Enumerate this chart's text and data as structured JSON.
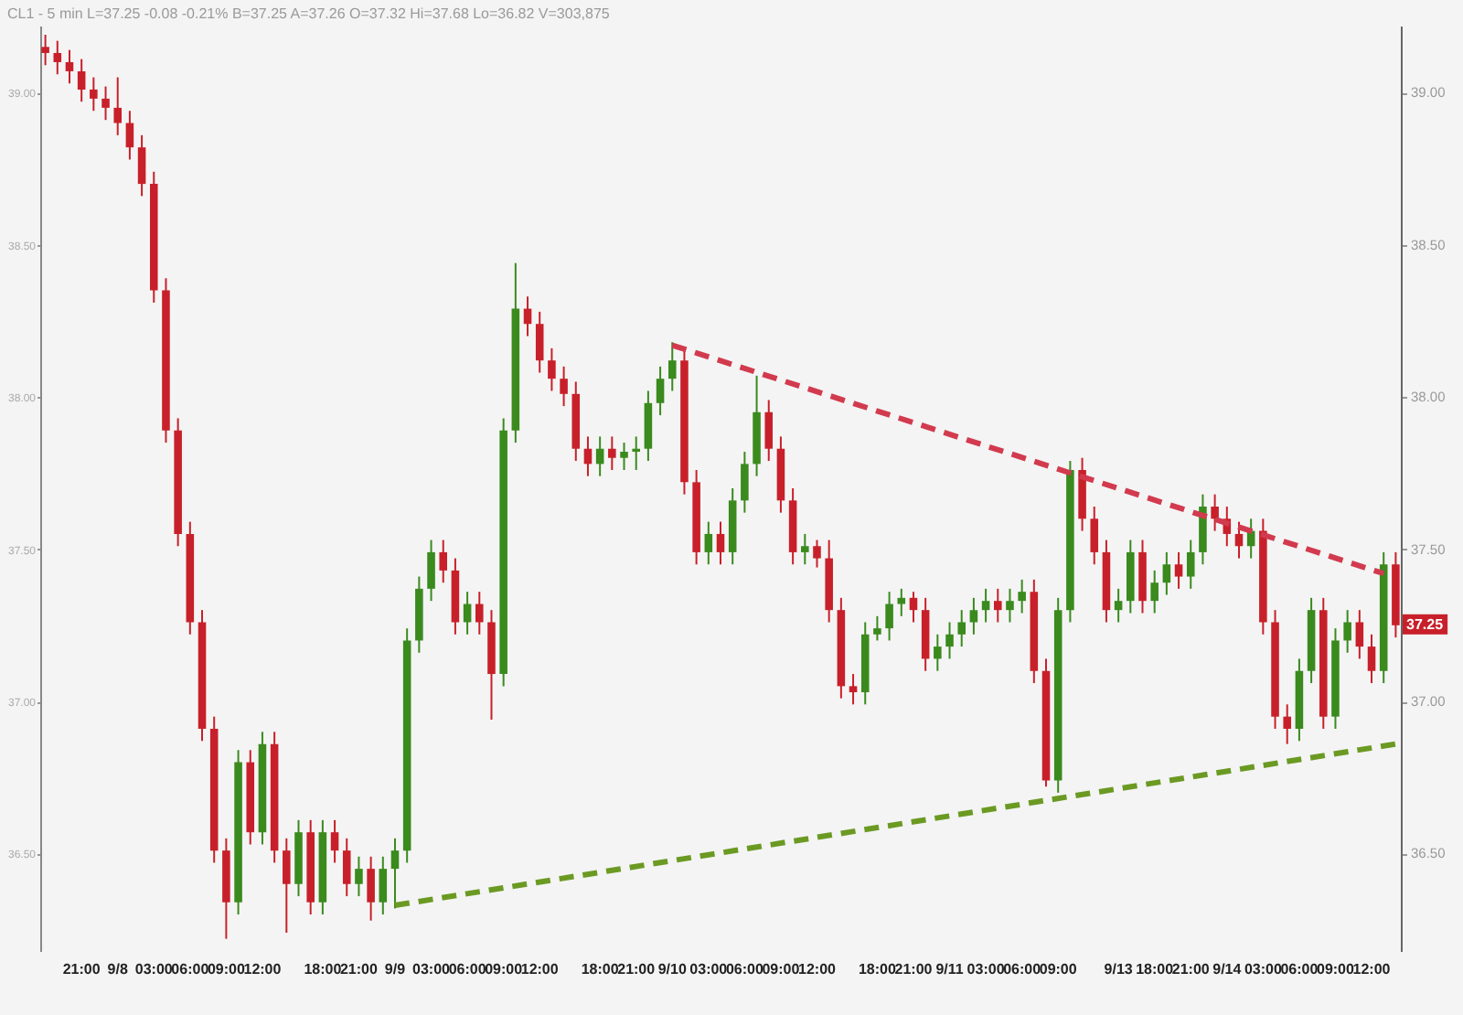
{
  "chart_data": {
    "type": "candlestick",
    "subtitle": "CL1 - 5 min  L=37.25 -0.08 -0.21% B=37.25 A=37.26 O=37.32 Hi=37.68 Lo=36.82 V=303,875",
    "categories": [
      null,
      null,
      null,
      "21:00",
      null,
      null,
      "9/8",
      null,
      null,
      "03:00",
      null,
      null,
      "06:00",
      null,
      null,
      "09:00",
      null,
      null,
      "12:00",
      null,
      null,
      null,
      null,
      "18:00",
      null,
      null,
      "21:00",
      null,
      null,
      "9/9",
      null,
      null,
      "03:00",
      null,
      null,
      "06:00",
      null,
      null,
      "09:00",
      null,
      null,
      "12:00",
      null,
      null,
      null,
      null,
      "18:00",
      null,
      null,
      "21:00",
      null,
      null,
      "9/10",
      null,
      null,
      "03:00",
      null,
      null,
      "06:00",
      null,
      null,
      "09:00",
      null,
      null,
      "12:00",
      null,
      null,
      null,
      null,
      "18:00",
      null,
      null,
      "21:00",
      null,
      null,
      "9/11",
      null,
      null,
      "03:00",
      null,
      null,
      "06:00",
      null,
      null,
      "09:00",
      null,
      null,
      null,
      null,
      "9/13",
      null,
      null,
      "18:00",
      null,
      null,
      "21:00",
      null,
      null,
      "9/14",
      null,
      null,
      "03:00",
      null,
      null,
      "06:00",
      null,
      null,
      "09:00",
      null,
      null,
      "12:00",
      null,
      null
    ],
    "ohlc": [
      [
        39.15,
        39.19,
        39.09,
        39.13
      ],
      [
        39.13,
        39.17,
        39.06,
        39.1
      ],
      [
        39.1,
        39.14,
        39.03,
        39.07
      ],
      [
        39.07,
        39.11,
        38.97,
        39.01
      ],
      [
        39.01,
        39.05,
        38.94,
        38.98
      ],
      [
        38.98,
        39.02,
        38.91,
        38.95
      ],
      [
        38.95,
        39.05,
        38.86,
        38.9
      ],
      [
        38.9,
        38.94,
        38.78,
        38.82
      ],
      [
        38.82,
        38.86,
        38.66,
        38.7
      ],
      [
        38.7,
        38.74,
        38.31,
        38.35
      ],
      [
        38.35,
        38.39,
        37.85,
        37.89
      ],
      [
        37.89,
        37.93,
        37.51,
        37.55
      ],
      [
        37.55,
        37.59,
        37.22,
        37.26
      ],
      [
        37.26,
        37.3,
        36.87,
        36.91
      ],
      [
        36.91,
        36.95,
        36.47,
        36.51
      ],
      [
        36.51,
        36.55,
        36.22,
        36.34
      ],
      [
        36.34,
        36.84,
        36.3,
        36.8
      ],
      [
        36.8,
        36.84,
        36.53,
        36.57
      ],
      [
        36.57,
        36.9,
        36.53,
        36.86
      ],
      [
        36.86,
        36.9,
        36.47,
        36.51
      ],
      [
        36.51,
        36.55,
        36.24,
        36.4
      ],
      [
        36.4,
        36.61,
        36.36,
        36.57
      ],
      [
        36.57,
        36.61,
        36.3,
        36.34
      ],
      [
        36.34,
        36.61,
        36.3,
        36.57
      ],
      [
        36.57,
        36.61,
        36.47,
        36.51
      ],
      [
        36.51,
        36.55,
        36.36,
        36.4
      ],
      [
        36.4,
        36.49,
        36.36,
        36.45
      ],
      [
        36.45,
        36.49,
        36.28,
        36.34
      ],
      [
        36.34,
        36.49,
        36.3,
        36.45
      ],
      [
        36.45,
        36.55,
        36.32,
        36.51
      ],
      [
        36.51,
        37.24,
        36.47,
        37.2
      ],
      [
        37.2,
        37.41,
        37.16,
        37.37
      ],
      [
        37.37,
        37.53,
        37.33,
        37.49
      ],
      [
        37.49,
        37.53,
        37.39,
        37.43
      ],
      [
        37.43,
        37.47,
        37.22,
        37.26
      ],
      [
        37.26,
        37.36,
        37.22,
        37.32
      ],
      [
        37.32,
        37.36,
        37.22,
        37.26
      ],
      [
        37.26,
        37.3,
        36.94,
        37.09
      ],
      [
        37.09,
        37.93,
        37.05,
        37.89
      ],
      [
        37.89,
        38.44,
        37.85,
        38.29
      ],
      [
        38.29,
        38.33,
        38.2,
        38.24
      ],
      [
        38.24,
        38.28,
        38.08,
        38.12
      ],
      [
        38.12,
        38.16,
        38.02,
        38.06
      ],
      [
        38.06,
        38.1,
        37.97,
        38.01
      ],
      [
        38.01,
        38.05,
        37.79,
        37.83
      ],
      [
        37.83,
        37.87,
        37.74,
        37.78
      ],
      [
        37.78,
        37.87,
        37.74,
        37.83
      ],
      [
        37.83,
        37.87,
        37.76,
        37.8
      ],
      [
        37.8,
        37.85,
        37.76,
        37.82
      ],
      [
        37.82,
        37.87,
        37.76,
        37.83
      ],
      [
        37.83,
        38.02,
        37.79,
        37.98
      ],
      [
        37.98,
        38.1,
        37.94,
        38.06
      ],
      [
        38.06,
        38.18,
        38.02,
        38.12
      ],
      [
        38.12,
        38.16,
        37.68,
        37.72
      ],
      [
        37.72,
        37.76,
        37.45,
        37.49
      ],
      [
        37.49,
        37.59,
        37.45,
        37.55
      ],
      [
        37.55,
        37.59,
        37.45,
        37.49
      ],
      [
        37.49,
        37.7,
        37.45,
        37.66
      ],
      [
        37.66,
        37.82,
        37.62,
        37.78
      ],
      [
        37.78,
        38.07,
        37.74,
        37.95
      ],
      [
        37.95,
        37.99,
        37.79,
        37.83
      ],
      [
        37.83,
        37.87,
        37.62,
        37.66
      ],
      [
        37.66,
        37.7,
        37.45,
        37.49
      ],
      [
        37.49,
        37.55,
        37.45,
        37.51
      ],
      [
        37.51,
        37.53,
        37.44,
        37.47
      ],
      [
        37.47,
        37.53,
        37.26,
        37.3
      ],
      [
        37.3,
        37.34,
        37.01,
        37.05
      ],
      [
        37.05,
        37.09,
        36.99,
        37.03
      ],
      [
        37.03,
        37.26,
        36.99,
        37.22
      ],
      [
        37.22,
        37.28,
        37.2,
        37.24
      ],
      [
        37.24,
        37.36,
        37.2,
        37.32
      ],
      [
        37.32,
        37.37,
        37.28,
        37.34
      ],
      [
        37.34,
        37.36,
        37.26,
        37.3
      ],
      [
        37.3,
        37.34,
        37.1,
        37.14
      ],
      [
        37.14,
        37.22,
        37.1,
        37.18
      ],
      [
        37.18,
        37.26,
        37.14,
        37.22
      ],
      [
        37.22,
        37.3,
        37.18,
        37.26
      ],
      [
        37.26,
        37.34,
        37.22,
        37.3
      ],
      [
        37.3,
        37.37,
        37.26,
        37.33
      ],
      [
        37.33,
        37.37,
        37.26,
        37.3
      ],
      [
        37.3,
        37.37,
        37.26,
        37.33
      ],
      [
        37.33,
        37.4,
        37.29,
        37.36
      ],
      [
        37.36,
        37.4,
        37.06,
        37.1
      ],
      [
        37.1,
        37.14,
        36.72,
        36.74
      ],
      [
        36.74,
        37.34,
        36.7,
        37.3
      ],
      [
        37.3,
        37.79,
        37.26,
        37.76
      ],
      [
        37.76,
        37.8,
        37.56,
        37.6
      ],
      [
        37.6,
        37.64,
        37.45,
        37.49
      ],
      [
        37.49,
        37.53,
        37.26,
        37.3
      ],
      [
        37.3,
        37.37,
        37.26,
        37.33
      ],
      [
        37.33,
        37.53,
        37.29,
        37.49
      ],
      [
        37.49,
        37.53,
        37.29,
        37.33
      ],
      [
        37.33,
        37.43,
        37.29,
        37.39
      ],
      [
        37.39,
        37.49,
        37.35,
        37.45
      ],
      [
        37.45,
        37.49,
        37.37,
        37.41
      ],
      [
        37.41,
        37.53,
        37.37,
        37.49
      ],
      [
        37.49,
        37.68,
        37.45,
        37.64
      ],
      [
        37.64,
        37.68,
        37.56,
        37.6
      ],
      [
        37.6,
        37.64,
        37.51,
        37.55
      ],
      [
        37.55,
        37.59,
        37.47,
        37.51
      ],
      [
        37.51,
        37.6,
        37.47,
        37.56
      ],
      [
        37.56,
        37.6,
        37.22,
        37.26
      ],
      [
        37.26,
        37.3,
        36.91,
        36.95
      ],
      [
        36.95,
        36.99,
        36.86,
        36.91
      ],
      [
        36.91,
        37.14,
        36.87,
        37.1
      ],
      [
        37.1,
        37.34,
        37.06,
        37.3
      ],
      [
        37.3,
        37.34,
        36.91,
        36.95
      ],
      [
        36.95,
        37.24,
        36.91,
        37.2
      ],
      [
        37.2,
        37.3,
        37.16,
        37.26
      ],
      [
        37.26,
        37.3,
        37.14,
        37.18
      ],
      [
        37.18,
        37.22,
        37.06,
        37.1
      ],
      [
        37.1,
        37.49,
        37.06,
        37.45
      ],
      [
        37.45,
        37.49,
        37.21,
        37.25
      ]
    ],
    "colors": [
      "#c8202a",
      "#c8202a",
      "#c8202a",
      "#c8202a",
      "#c8202a",
      "#c8202a",
      "#c8202a",
      "#c8202a",
      "#c8202a",
      "#c8202a",
      "#c8202a",
      "#c8202a",
      "#c8202a",
      "#c8202a",
      "#c8202a",
      "#c8202a",
      "#3a8a1e",
      "#c8202a",
      "#3a8a1e",
      "#c8202a",
      "#c8202a",
      "#3a8a1e",
      "#c8202a",
      "#3a8a1e",
      "#c8202a",
      "#c8202a",
      "#3a8a1e",
      "#c8202a",
      "#3a8a1e",
      "#3a8a1e",
      "#3a8a1e",
      "#3a8a1e",
      "#3a8a1e",
      "#c8202a",
      "#c8202a",
      "#3a8a1e",
      "#c8202a",
      "#c8202a",
      "#3a8a1e",
      "#3a8a1e",
      "#c8202a",
      "#c8202a",
      "#c8202a",
      "#c8202a",
      "#c8202a",
      "#c8202a",
      "#3a8a1e",
      "#c8202a",
      "#3a8a1e",
      "#3a8a1e",
      "#3a8a1e",
      "#3a8a1e",
      "#3a8a1e",
      "#c8202a",
      "#c8202a",
      "#3a8a1e",
      "#c8202a",
      "#3a8a1e",
      "#3a8a1e",
      "#3a8a1e",
      "#c8202a",
      "#c8202a",
      "#c8202a",
      "#3a8a1e",
      "#c8202a",
      "#c8202a",
      "#c8202a",
      "#c8202a",
      "#3a8a1e",
      "#3a8a1e",
      "#3a8a1e",
      "#3a8a1e",
      "#c8202a",
      "#c8202a",
      "#3a8a1e",
      "#3a8a1e",
      "#3a8a1e",
      "#3a8a1e",
      "#3a8a1e",
      "#c8202a",
      "#3a8a1e",
      "#3a8a1e",
      "#c8202a",
      "#c8202a",
      "#3a8a1e",
      "#3a8a1e",
      "#c8202a",
      "#c8202a",
      "#c8202a",
      "#3a8a1e",
      "#3a8a1e",
      "#c8202a",
      "#3a8a1e",
      "#3a8a1e",
      "#c8202a",
      "#3a8a1e",
      "#3a8a1e",
      "#c8202a",
      "#c8202a",
      "#c8202a",
      "#3a8a1e",
      "#c8202a",
      "#c8202a",
      "#c8202a",
      "#3a8a1e",
      "#3a8a1e",
      "#c8202a",
      "#3a8a1e",
      "#3a8a1e",
      "#c8202a",
      "#c8202a",
      "#3a8a1e",
      "#c8202a"
    ],
    "series": [
      {
        "type": "line",
        "color": "#d23a4e",
        "line_style": "dashed",
        "values": [
          null,
          null,
          null,
          null,
          null,
          null,
          null,
          null,
          null,
          null,
          null,
          null,
          null,
          null,
          null,
          null,
          null,
          null,
          null,
          null,
          null,
          null,
          null,
          null,
          null,
          null,
          null,
          null,
          null,
          null,
          null,
          null,
          null,
          null,
          null,
          null,
          null,
          null,
          null,
          null,
          null,
          null,
          null,
          null,
          null,
          null,
          null,
          null,
          null,
          null,
          null,
          null,
          38.17,
          null,
          null,
          null,
          null,
          null,
          null,
          null,
          null,
          null,
          null,
          null,
          null,
          null,
          null,
          null,
          null,
          null,
          null,
          null,
          null,
          null,
          null,
          null,
          null,
          null,
          null,
          null,
          null,
          null,
          null,
          null,
          null,
          null,
          null,
          null,
          null,
          null,
          null,
          null,
          null,
          null,
          null,
          null,
          null,
          null,
          null,
          null,
          null,
          null,
          null,
          null,
          null,
          null,
          null,
          null,
          null,
          null,
          null,
          37.42,
          null
        ]
      },
      {
        "type": "line",
        "color": "#6b9a23",
        "line_style": "dashed",
        "values": [
          null,
          null,
          null,
          null,
          null,
          null,
          null,
          null,
          null,
          null,
          null,
          null,
          null,
          null,
          null,
          null,
          null,
          null,
          null,
          null,
          null,
          null,
          null,
          null,
          null,
          null,
          null,
          null,
          null,
          36.33,
          null,
          null,
          null,
          null,
          null,
          null,
          null,
          null,
          null,
          null,
          null,
          null,
          null,
          null,
          null,
          null,
          null,
          null,
          null,
          null,
          null,
          null,
          null,
          null,
          null,
          null,
          null,
          null,
          null,
          null,
          null,
          null,
          null,
          null,
          null,
          null,
          null,
          null,
          null,
          null,
          null,
          null,
          null,
          null,
          null,
          null,
          null,
          null,
          null,
          null,
          null,
          null,
          null,
          null,
          null,
          null,
          null,
          null,
          null,
          null,
          null,
          null,
          null,
          null,
          null,
          null,
          null,
          null,
          null,
          null,
          null,
          null,
          null,
          null,
          null,
          null,
          null,
          null,
          null,
          null,
          null,
          null,
          36.86
        ]
      }
    ],
    "annotations": [
      "37.25"
    ],
    "ylim": [
      36.18,
      39.22
    ],
    "yticks": [
      {
        "value": 36.5,
        "label": "36.50"
      },
      {
        "value": 37,
        "label": "37.00"
      },
      {
        "value": 37.5,
        "label": "37.50"
      },
      {
        "value": 38,
        "label": "38.00"
      },
      {
        "value": 38.5,
        "label": "38.50"
      },
      {
        "value": 39,
        "label": "39.00"
      }
    ],
    "y2lim": [
      36.18,
      39.22
    ],
    "y2ticks": [
      {
        "value": 36.5,
        "label": "36.50"
      },
      {
        "value": 37,
        "label": "37.00"
      },
      {
        "value": 37.5,
        "label": "37.50"
      },
      {
        "value": 38,
        "label": "38.00"
      },
      {
        "value": 38.5,
        "label": "38.50"
      },
      {
        "value": 39,
        "label": "39.00"
      }
    ]
  }
}
